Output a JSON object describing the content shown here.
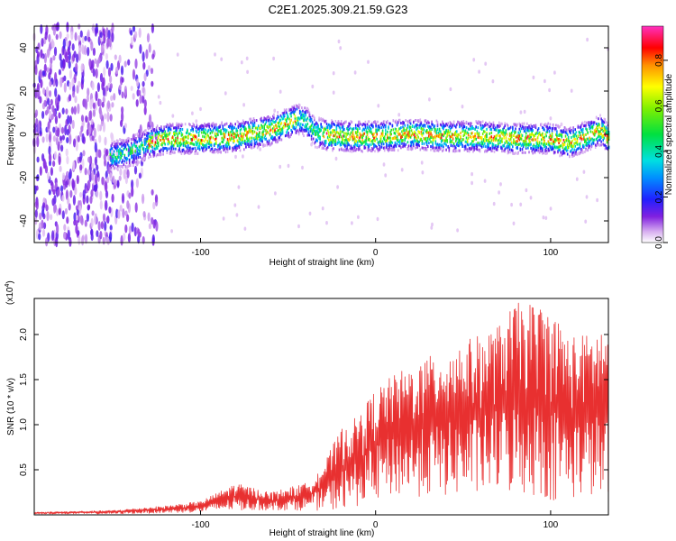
{
  "figure": {
    "title": "C2E1.2025.309.21.59.G23"
  },
  "colors": {
    "snr_line": "#e83030",
    "axis": "#000000",
    "background": "#ffffff"
  },
  "chart_data": [
    {
      "type": "heatmap",
      "name": "spectrogram",
      "xlabel": "Height of straight line (km)",
      "ylabel": "Frequency (Hz)",
      "xlim": [
        -195,
        133
      ],
      "ylim": [
        -50,
        50
      ],
      "xticks": [
        -100,
        0,
        100
      ],
      "yticks": [
        -40,
        -20,
        0,
        20,
        40
      ],
      "grid": false,
      "colorbar": {
        "label": "Normalized spectral amplitude",
        "range": [
          0.0,
          0.95
        ],
        "ticks": [
          0.0,
          0.2,
          0.4,
          0.6,
          0.8
        ]
      },
      "ridge": {
        "description_points_x": [
          -150,
          -140,
          -130,
          -120,
          -100,
          -80,
          -60,
          -45,
          -40,
          -35,
          -30,
          -20,
          0,
          20,
          40,
          60,
          80,
          100,
          110,
          120,
          128,
          133
        ],
        "description_points_freq": [
          -10,
          -8,
          -4,
          -2,
          -2,
          -1,
          2,
          7,
          6,
          1,
          0,
          -1,
          -1,
          0,
          -1,
          -1,
          -2,
          -2,
          -4,
          -1,
          2,
          -2
        ]
      },
      "noise_region_x": [
        -195,
        -125
      ]
    },
    {
      "type": "line",
      "name": "snr",
      "xlabel": "Height of straight line (km)",
      "ylabel": "SNR (10 * v/v)",
      "scale_label": "(x10",
      "scale_exponent": "4",
      "xlim": [
        -195,
        133
      ],
      "ylim": [
        0,
        2.4
      ],
      "xticks": [
        -100,
        0,
        100
      ],
      "yticks": [
        0.5,
        1.0,
        1.5,
        2.0
      ],
      "ytick_labels": [
        "0.5",
        "1.0",
        "1.5",
        "2.0"
      ],
      "grid": false,
      "envelope": {
        "x": [
          -195,
          -150,
          -120,
          -100,
          -90,
          -80,
          -60,
          -40,
          -30,
          -20,
          -10,
          0,
          10,
          20,
          40,
          60,
          70,
          80,
          90,
          100,
          110,
          120,
          130,
          133
        ],
        "upper": [
          0.03,
          0.05,
          0.1,
          0.15,
          0.25,
          0.35,
          0.25,
          0.35,
          0.55,
          0.95,
          1.1,
          1.4,
          1.55,
          1.65,
          1.85,
          2.0,
          2.1,
          2.35,
          2.35,
          2.3,
          2.0,
          2.0,
          2.1,
          2.0
        ],
        "lower": [
          0.01,
          0.01,
          0.02,
          0.03,
          0.04,
          0.05,
          0.05,
          0.05,
          0.05,
          0.05,
          0.1,
          0.15,
          0.2,
          0.2,
          0.2,
          0.2,
          0.25,
          0.2,
          0.2,
          0.15,
          0.15,
          0.2,
          0.15,
          0.1
        ]
      }
    }
  ]
}
